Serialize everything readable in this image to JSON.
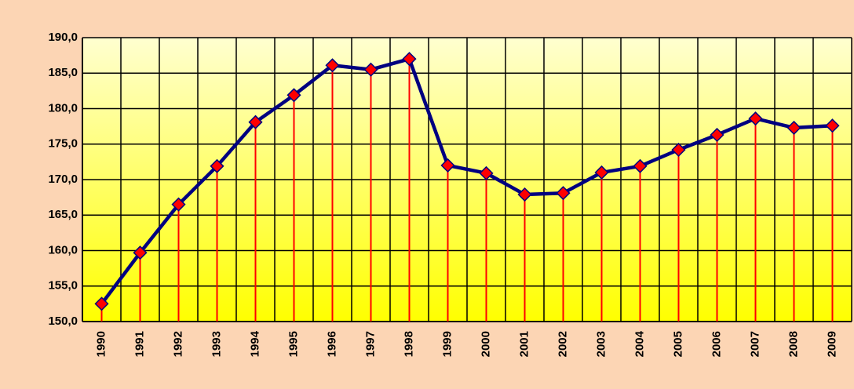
{
  "chart_data": {
    "type": "line",
    "categories": [
      "1990",
      "1991",
      "1992",
      "1993",
      "1994",
      "1995",
      "1996",
      "1997",
      "1998",
      "1999",
      "2000",
      "2001",
      "2002",
      "2003",
      "2004",
      "2005",
      "2006",
      "2007",
      "2008",
      "2009"
    ],
    "series": [
      {
        "color": "#000080",
        "marker_color": "#ff0000",
        "drop_line_color": "#ff0000",
        "values": [
          152.5,
          159.7,
          166.5,
          171.9,
          178.1,
          181.9,
          186.1,
          185.5,
          187.0,
          172.0,
          170.9,
          167.9,
          168.1,
          171.0,
          171.9,
          174.2,
          176.3,
          178.6,
          177.3,
          177.6
        ]
      }
    ],
    "ylim": [
      150,
      190
    ],
    "yticks": [
      {
        "value": 150,
        "label": "150,0"
      },
      {
        "value": 155,
        "label": "155,0"
      },
      {
        "value": 160,
        "label": "160,0"
      },
      {
        "value": 165,
        "label": "165,0"
      },
      {
        "value": 170,
        "label": "170,0"
      },
      {
        "value": 175,
        "label": "175,0"
      },
      {
        "value": 180,
        "label": "180,0"
      },
      {
        "value": 185,
        "label": "185,0"
      },
      {
        "value": 190,
        "label": "190,0"
      }
    ],
    "grid": true
  }
}
